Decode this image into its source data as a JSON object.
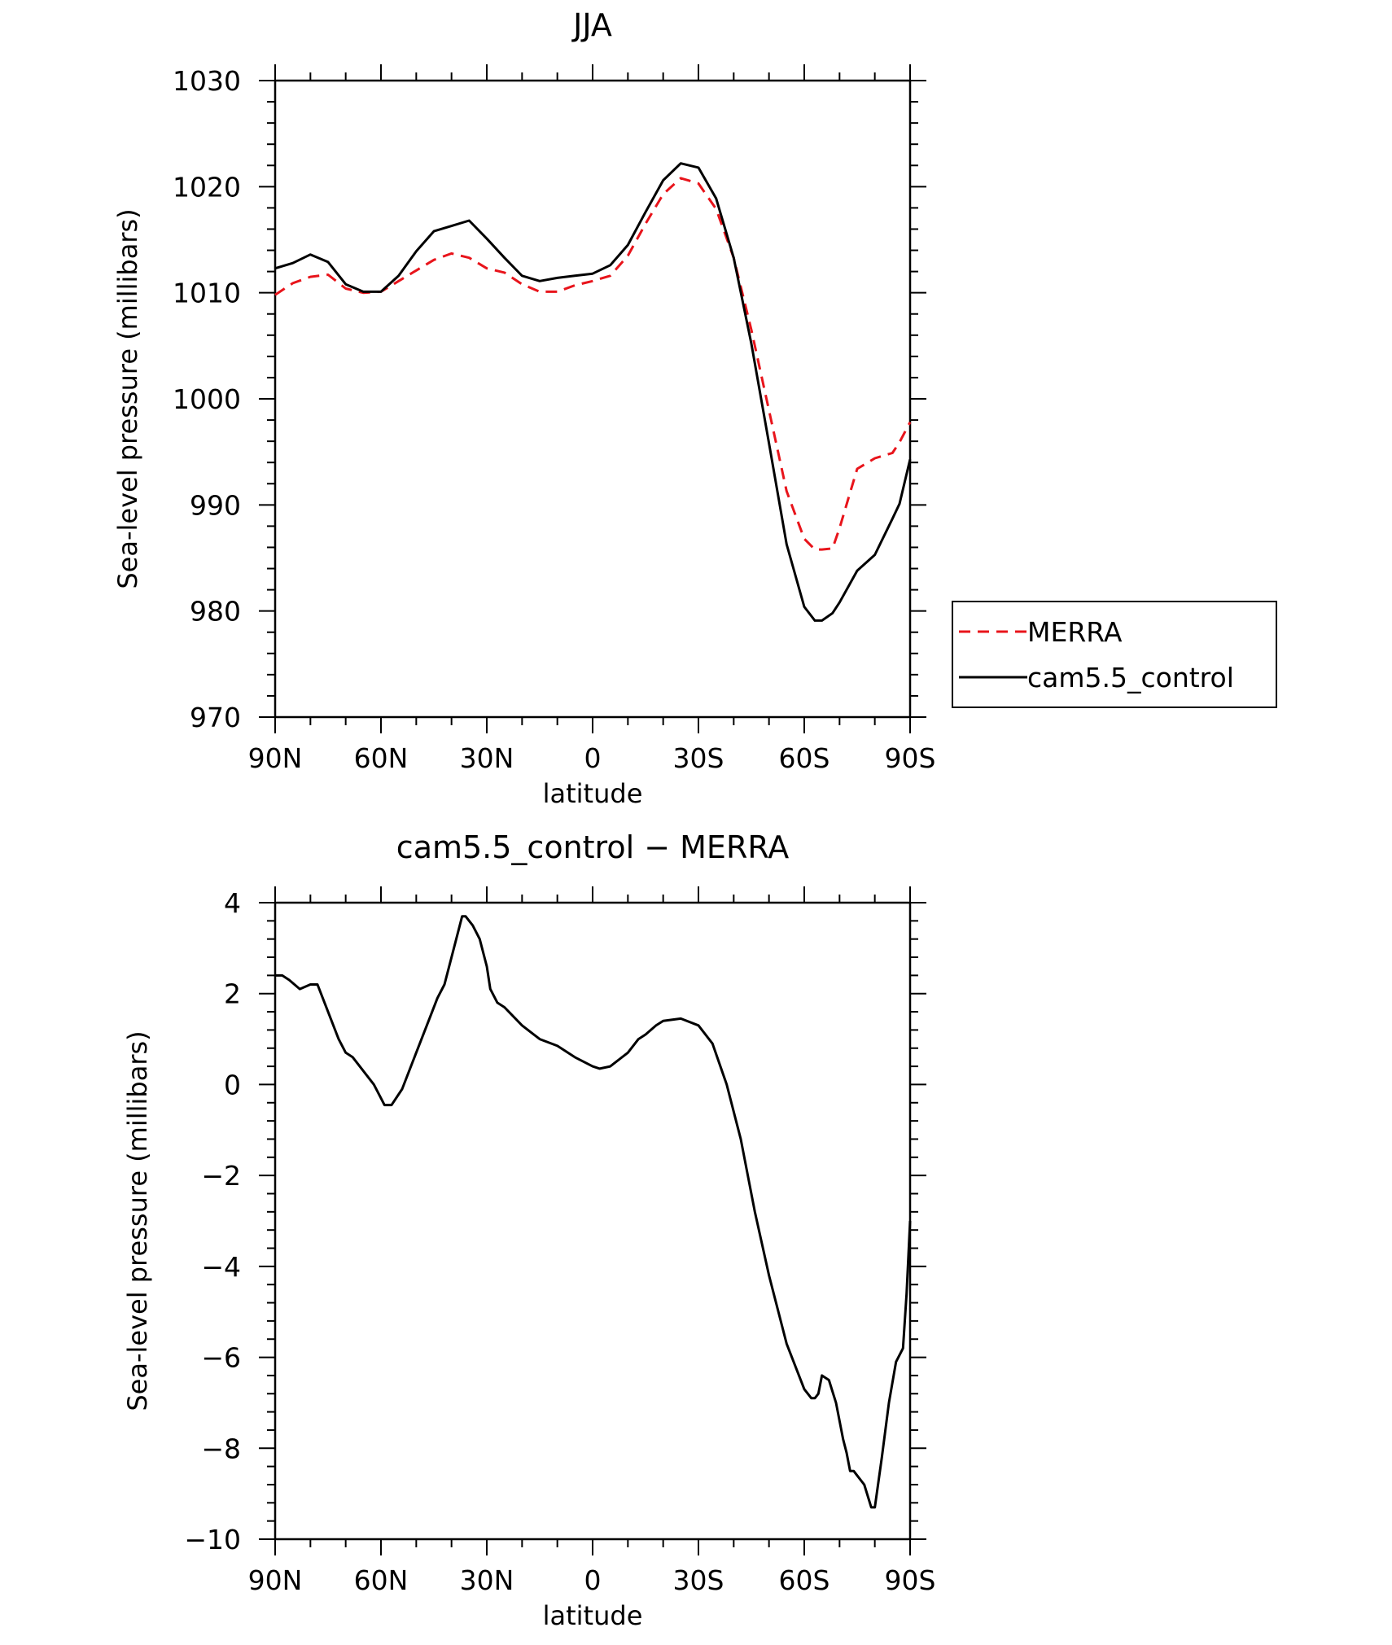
{
  "chart_data": [
    {
      "type": "line",
      "title": "JJA",
      "xlabel": "latitude",
      "ylabel": "Sea-level pressure (millibars)",
      "xlim": [
        90,
        -90
      ],
      "ylim": [
        970,
        1030
      ],
      "xticks": [
        {
          "value": 90,
          "label": "90N"
        },
        {
          "value": 60,
          "label": "60N"
        },
        {
          "value": 30,
          "label": "30N"
        },
        {
          "value": 0,
          "label": "0"
        },
        {
          "value": -30,
          "label": "30S"
        },
        {
          "value": -60,
          "label": "60S"
        },
        {
          "value": -90,
          "label": "90S"
        }
      ],
      "yticks": [
        970,
        980,
        990,
        1000,
        1010,
        1020,
        1030
      ],
      "grid": false,
      "legend": "right",
      "series": [
        {
          "name": "MERRA",
          "color": "#e8141b",
          "dash": true,
          "x": [
            90,
            85,
            80,
            75,
            70,
            65,
            60,
            55,
            50,
            45,
            40,
            35,
            30,
            25,
            20,
            15,
            10,
            5,
            0,
            -5,
            -10,
            -15,
            -20,
            -25,
            -30,
            -35,
            -40,
            -45,
            -50,
            -55,
            -60,
            -63,
            -65,
            -68,
            -70,
            -75,
            -80,
            -85,
            -87,
            -90
          ],
          "y": [
            1009.8,
            1010.9,
            1011.5,
            1011.7,
            1010.4,
            1010.0,
            1010.1,
            1011.1,
            1012.1,
            1013.1,
            1013.7,
            1013.3,
            1012.3,
            1011.9,
            1010.8,
            1010.1,
            1010.1,
            1010.7,
            1011.1,
            1011.6,
            1013.5,
            1016.5,
            1019.3,
            1020.8,
            1020.3,
            1017.9,
            1013.3,
            1006.5,
            998.9,
            991.3,
            986.8,
            985.8,
            985.8,
            985.9,
            987.8,
            993.4,
            994.4,
            994.9,
            995.9,
            997.8
          ]
        },
        {
          "name": "cam5.5_control",
          "color": "#000000",
          "dash": false,
          "x": [
            90,
            85,
            80,
            75,
            70,
            65,
            60,
            55,
            50,
            45,
            40,
            35,
            30,
            25,
            20,
            15,
            10,
            5,
            0,
            -5,
            -10,
            -15,
            -20,
            -25,
            -30,
            -35,
            -40,
            -45,
            -50,
            -55,
            -60,
            -63,
            -65,
            -68,
            -70,
            -75,
            -80,
            -85,
            -87,
            -90
          ],
          "y": [
            1012.3,
            1012.8,
            1013.6,
            1012.9,
            1010.8,
            1010.1,
            1010.1,
            1011.6,
            1013.9,
            1015.8,
            1016.3,
            1016.8,
            1015.1,
            1013.3,
            1011.6,
            1011.1,
            1011.4,
            1011.6,
            1011.8,
            1012.6,
            1014.5,
            1017.6,
            1020.6,
            1022.2,
            1021.8,
            1018.9,
            1013.3,
            1005.2,
            995.8,
            986.3,
            980.4,
            979.1,
            979.1,
            979.8,
            980.8,
            983.8,
            985.3,
            988.7,
            990.1,
            994.3
          ]
        }
      ]
    },
    {
      "type": "line",
      "title": "cam5.5_control − MERRA",
      "xlabel": "latitude",
      "ylabel": "Sea-level pressure (millibars)",
      "xlim": [
        90,
        -90
      ],
      "ylim": [
        -10,
        4
      ],
      "xticks": [
        {
          "value": 90,
          "label": "90N"
        },
        {
          "value": 60,
          "label": "60N"
        },
        {
          "value": 30,
          "label": "30N"
        },
        {
          "value": 0,
          "label": "0"
        },
        {
          "value": -30,
          "label": "30S"
        },
        {
          "value": -60,
          "label": "60S"
        },
        {
          "value": -90,
          "label": "90S"
        }
      ],
      "yticks": [
        -10,
        -8,
        -6,
        -4,
        -2,
        0,
        2,
        4
      ],
      "grid": false,
      "legend": "none",
      "series": [
        {
          "color": "#000000",
          "dash": false,
          "x": [
            90,
            88,
            86,
            83,
            80,
            78,
            76,
            72,
            70,
            68,
            65,
            62,
            60,
            59,
            57,
            54,
            50,
            46,
            44,
            42,
            40,
            37,
            36,
            34,
            32,
            30,
            29,
            27,
            25,
            20,
            15,
            10,
            5,
            0,
            -2,
            -5,
            -10,
            -13,
            -15,
            -18,
            -20,
            -25,
            -30,
            -34,
            -38,
            -42,
            -46,
            -50,
            -55,
            -60,
            -62,
            -63,
            -64,
            -65,
            -67,
            -69,
            -71,
            -72,
            -73,
            -74,
            -75,
            -77,
            -79,
            -80,
            -82,
            -84,
            -86,
            -88,
            -89,
            -90
          ],
          "y": [
            2.4,
            2.4,
            2.3,
            2.1,
            2.2,
            2.2,
            1.8,
            1.0,
            0.7,
            0.6,
            0.3,
            0.0,
            -0.3,
            -0.45,
            -0.45,
            -0.1,
            0.7,
            1.5,
            1.9,
            2.2,
            2.8,
            3.7,
            3.7,
            3.5,
            3.2,
            2.6,
            2.1,
            1.8,
            1.7,
            1.3,
            1.0,
            0.85,
            0.6,
            0.4,
            0.35,
            0.4,
            0.7,
            1.0,
            1.1,
            1.3,
            1.4,
            1.45,
            1.3,
            0.9,
            0.0,
            -1.2,
            -2.8,
            -4.2,
            -5.7,
            -6.7,
            -6.9,
            -6.9,
            -6.8,
            -6.4,
            -6.5,
            -7.0,
            -7.8,
            -8.1,
            -8.5,
            -8.5,
            -8.6,
            -8.8,
            -9.3,
            -9.3,
            -8.2,
            -7.0,
            -6.1,
            -5.8,
            -4.6,
            -3.0
          ]
        }
      ]
    }
  ]
}
